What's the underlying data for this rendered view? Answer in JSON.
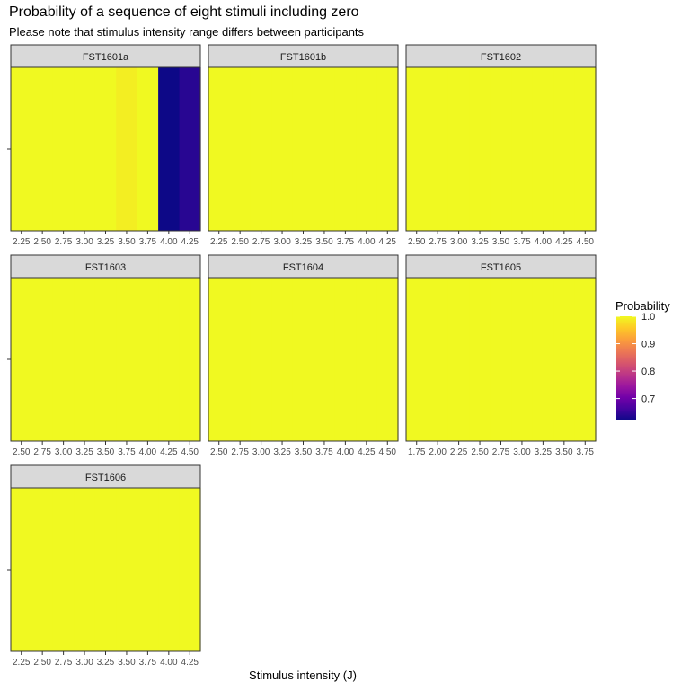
{
  "chart_data": {
    "type": "heatmap",
    "title": "Probability of a sequence of eight stimuli including zero",
    "subtitle": "Please note that stimulus intensity range differs between participants",
    "xlabel": "Stimulus intensity (J)",
    "ylabel": "",
    "legend": {
      "title": "Probability",
      "position": "right",
      "range": [
        0.62,
        1.0
      ],
      "ticks": [
        "0.7",
        "0.8",
        "0.9",
        "1.0"
      ],
      "tick_values": [
        0.7,
        0.8,
        0.9,
        1.0
      ]
    },
    "panels": [
      {
        "name": "FST1601a",
        "xlim": [
          2.125,
          4.375
        ],
        "tick_values": [
          2.25,
          2.5,
          2.75,
          3.0,
          3.25,
          3.5,
          3.75,
          4.0,
          4.25
        ],
        "tick_labels": [
          "2.25",
          "2.50",
          "2.75",
          "3.00",
          "3.25",
          "3.50",
          "3.75",
          "4.00",
          "4.25"
        ],
        "x": [
          2.25,
          2.5,
          2.75,
          3.0,
          3.25,
          3.5,
          3.75,
          4.0,
          4.25
        ],
        "values": [
          1.0,
          1.0,
          1.0,
          1.0,
          1.0,
          0.99,
          1.0,
          0.62,
          0.64
        ]
      },
      {
        "name": "FST1601b",
        "xlim": [
          2.125,
          4.375
        ],
        "tick_values": [
          2.25,
          2.5,
          2.75,
          3.0,
          3.25,
          3.5,
          3.75,
          4.0,
          4.25
        ],
        "tick_labels": [
          "2.25",
          "2.50",
          "2.75",
          "3.00",
          "3.25",
          "3.50",
          "3.75",
          "4.00",
          "4.25"
        ],
        "x": [
          2.25,
          2.5,
          2.75,
          3.0,
          3.25,
          3.5,
          3.75,
          4.0,
          4.25
        ],
        "values": [
          1.0,
          1.0,
          1.0,
          1.0,
          1.0,
          1.0,
          1.0,
          1.0,
          1.0
        ]
      },
      {
        "name": "FST1602",
        "xlim": [
          2.375,
          4.625
        ],
        "tick_values": [
          2.5,
          2.75,
          3.0,
          3.25,
          3.5,
          3.75,
          4.0,
          4.25,
          4.5
        ],
        "tick_labels": [
          "2.50",
          "2.75",
          "3.00",
          "3.25",
          "3.50",
          "3.75",
          "4.00",
          "4.25",
          "4.50"
        ],
        "x": [
          2.5,
          2.75,
          3.0,
          3.25,
          3.5,
          3.75,
          4.0,
          4.25,
          4.5
        ],
        "values": [
          1.0,
          1.0,
          1.0,
          1.0,
          1.0,
          1.0,
          1.0,
          1.0,
          1.0
        ]
      },
      {
        "name": "FST1603",
        "xlim": [
          2.375,
          4.625
        ],
        "tick_values": [
          2.5,
          2.75,
          3.0,
          3.25,
          3.5,
          3.75,
          4.0,
          4.25,
          4.5
        ],
        "tick_labels": [
          "2.50",
          "2.75",
          "3.00",
          "3.25",
          "3.50",
          "3.75",
          "4.00",
          "4.25",
          "4.50"
        ],
        "x": [
          2.5,
          2.75,
          3.0,
          3.25,
          3.5,
          3.75,
          4.0,
          4.25,
          4.5
        ],
        "values": [
          1.0,
          1.0,
          1.0,
          1.0,
          1.0,
          1.0,
          1.0,
          1.0,
          1.0
        ]
      },
      {
        "name": "FST1604",
        "xlim": [
          2.375,
          4.625
        ],
        "tick_values": [
          2.5,
          2.75,
          3.0,
          3.25,
          3.5,
          3.75,
          4.0,
          4.25,
          4.5
        ],
        "tick_labels": [
          "2.50",
          "2.75",
          "3.00",
          "3.25",
          "3.50",
          "3.75",
          "4.00",
          "4.25",
          "4.50"
        ],
        "x": [
          2.5,
          2.75,
          3.0,
          3.25,
          3.5,
          3.75,
          4.0,
          4.25,
          4.5
        ],
        "values": [
          1.0,
          1.0,
          1.0,
          1.0,
          1.0,
          1.0,
          1.0,
          1.0,
          1.0
        ]
      },
      {
        "name": "FST1605",
        "xlim": [
          1.625,
          3.875
        ],
        "tick_values": [
          1.75,
          2.0,
          2.25,
          2.5,
          2.75,
          3.0,
          3.25,
          3.5,
          3.75
        ],
        "tick_labels": [
          "1.75",
          "2.00",
          "2.25",
          "2.50",
          "2.75",
          "3.00",
          "3.25",
          "3.50",
          "3.75"
        ],
        "x": [
          1.75,
          2.0,
          2.25,
          2.5,
          2.75,
          3.0,
          3.25,
          3.5,
          3.75
        ],
        "values": [
          1.0,
          1.0,
          1.0,
          1.0,
          1.0,
          1.0,
          1.0,
          1.0,
          1.0
        ]
      },
      {
        "name": "FST1606",
        "xlim": [
          2.125,
          4.375
        ],
        "tick_values": [
          2.25,
          2.5,
          2.75,
          3.0,
          3.25,
          3.5,
          3.75,
          4.0,
          4.25
        ],
        "tick_labels": [
          "2.25",
          "2.50",
          "2.75",
          "3.00",
          "3.25",
          "3.50",
          "3.75",
          "4.00",
          "4.25"
        ],
        "x": [
          2.25,
          2.5,
          2.75,
          3.0,
          3.25,
          3.5,
          3.75,
          4.0,
          4.25
        ],
        "values": [
          1.0,
          1.0,
          1.0,
          1.0,
          1.0,
          1.0,
          1.0,
          1.0,
          1.0
        ]
      }
    ],
    "colorscale": {
      "name": "plasma",
      "stops": [
        "#0d0887",
        "#46039f",
        "#7201a8",
        "#9c179e",
        "#bd3786",
        "#d8576b",
        "#ed7953",
        "#fb9f3a",
        "#fdca26",
        "#f0f921"
      ]
    }
  }
}
